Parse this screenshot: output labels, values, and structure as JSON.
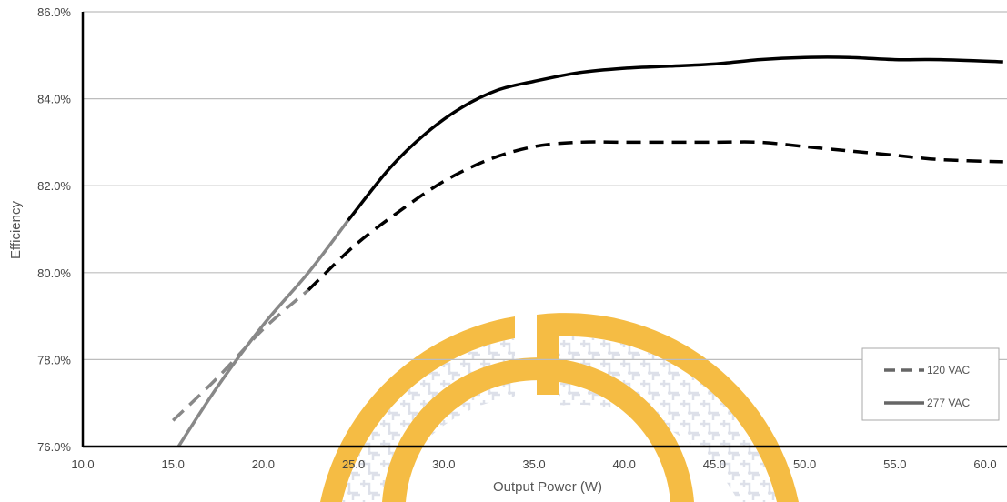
{
  "chart_data": {
    "type": "line",
    "title": "",
    "xlabel": "Output Power (W)",
    "ylabel": "Efficiency",
    "xlim": [
      10,
      61
    ],
    "ylim": [
      76,
      86
    ],
    "x_ticks": [
      "10.0",
      "15.0",
      "20.0",
      "25.0",
      "30.0",
      "35.0",
      "40.0",
      "45.0",
      "50.0",
      "55.0",
      "60.0"
    ],
    "y_ticks": [
      "76.0%",
      "78.0%",
      "80.0%",
      "82.0%",
      "84.0%",
      "86.0%"
    ],
    "grid": "horizontal",
    "legend_position": "bottom-right",
    "series": [
      {
        "name": "120 VAC",
        "style": "dashed",
        "color": "#000000",
        "grey_segment_color": "#888888",
        "points": [
          [
            15.0,
            76.6
          ],
          [
            17.5,
            77.6
          ],
          [
            20.0,
            78.7
          ],
          [
            22.5,
            79.6
          ],
          [
            25.0,
            80.6
          ],
          [
            27.5,
            81.4
          ],
          [
            30.0,
            82.1
          ],
          [
            32.5,
            82.6
          ],
          [
            35.0,
            82.9
          ],
          [
            37.5,
            83.0
          ],
          [
            40.0,
            83.0
          ],
          [
            42.5,
            83.0
          ],
          [
            45.0,
            83.0
          ],
          [
            47.5,
            83.0
          ],
          [
            50.0,
            82.9
          ],
          [
            52.5,
            82.8
          ],
          [
            55.0,
            82.7
          ],
          [
            57.5,
            82.6
          ],
          [
            61.0,
            82.55
          ]
        ]
      },
      {
        "name": "277 VAC",
        "style": "solid",
        "color": "#000000",
        "grey_segment_color": "#888888",
        "points": [
          [
            15.3,
            76.0
          ],
          [
            17.5,
            77.4
          ],
          [
            20.0,
            78.8
          ],
          [
            22.5,
            80.0
          ],
          [
            24.7,
            81.2
          ],
          [
            27.0,
            82.4
          ],
          [
            29.0,
            83.2
          ],
          [
            31.0,
            83.8
          ],
          [
            33.0,
            84.2
          ],
          [
            35.0,
            84.4
          ],
          [
            37.5,
            84.6
          ],
          [
            40.0,
            84.7
          ],
          [
            42.5,
            84.75
          ],
          [
            45.0,
            84.8
          ],
          [
            47.5,
            84.9
          ],
          [
            50.0,
            84.95
          ],
          [
            52.5,
            84.95
          ],
          [
            55.0,
            84.9
          ],
          [
            57.5,
            84.9
          ],
          [
            61.0,
            84.85
          ]
        ]
      }
    ],
    "grey_until_x": 24.7
  },
  "legend": [
    {
      "label": "120 VAC",
      "style": "dashed",
      "color": "#666666"
    },
    {
      "label": "277 VAC",
      "style": "solid",
      "color": "#666666"
    }
  ],
  "colors": {
    "axis": "#000000",
    "grid": "#bdbdbd",
    "watermark": "#f5b93a"
  }
}
